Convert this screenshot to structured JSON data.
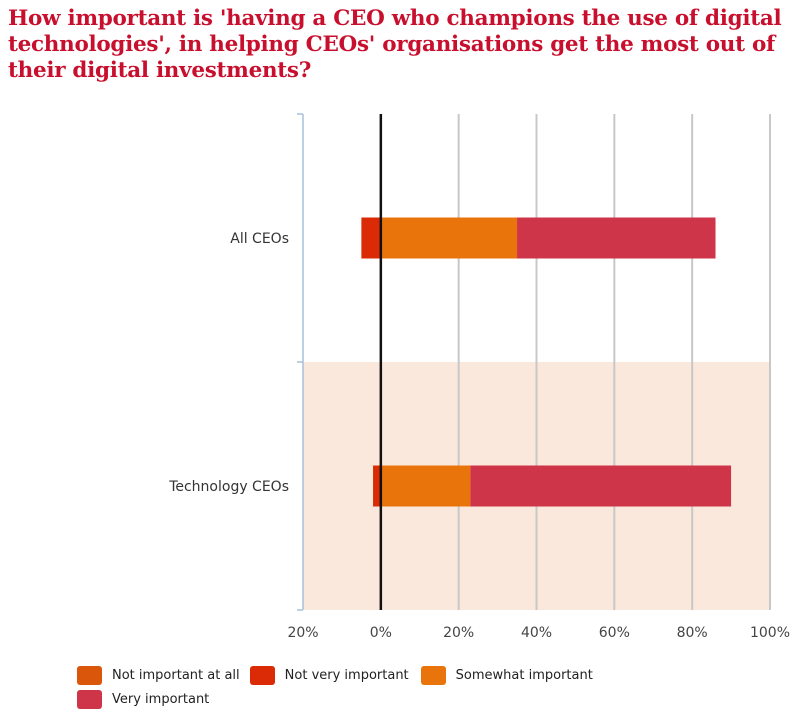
{
  "chart_data": {
    "type": "bar",
    "orientation": "horizontal",
    "stacked": "diverging",
    "title": "How important is 'having a CEO who champions the use of digital technologies', in helping CEOs' organisations get the most out of their digital investments?",
    "xlabel": "",
    "ylabel": "",
    "xlim": [
      -20,
      100
    ],
    "x_ticks": [
      -20,
      0,
      20,
      40,
      60,
      80,
      100
    ],
    "x_tick_labels": [
      "20%",
      "0%",
      "20%",
      "40%",
      "60%",
      "80%",
      "100%"
    ],
    "grid": true,
    "legend_position": "bottom",
    "categories": [
      "All CEOs",
      "Technology CEOs"
    ],
    "series": [
      {
        "name": "Not important at all",
        "color": "#D9560A",
        "side": "negative",
        "values": [
          0,
          0
        ]
      },
      {
        "name": "Not very important",
        "color": "#DA2A06",
        "side": "negative",
        "values": [
          5,
          2
        ]
      },
      {
        "name": "Somewhat important",
        "color": "#E8740B",
        "side": "positive",
        "values": [
          35,
          23
        ]
      },
      {
        "name": "Very important",
        "color": "#CF3548",
        "side": "positive",
        "values": [
          51,
          67
        ]
      }
    ],
    "highlighted_category": "Technology CEOs",
    "highlight_color": "#FBE8DC"
  },
  "colors": {
    "title": "#C8102E",
    "zero_line": "#111111",
    "gridline": "#C8C8C8",
    "axis": "#A9C0DA"
  }
}
